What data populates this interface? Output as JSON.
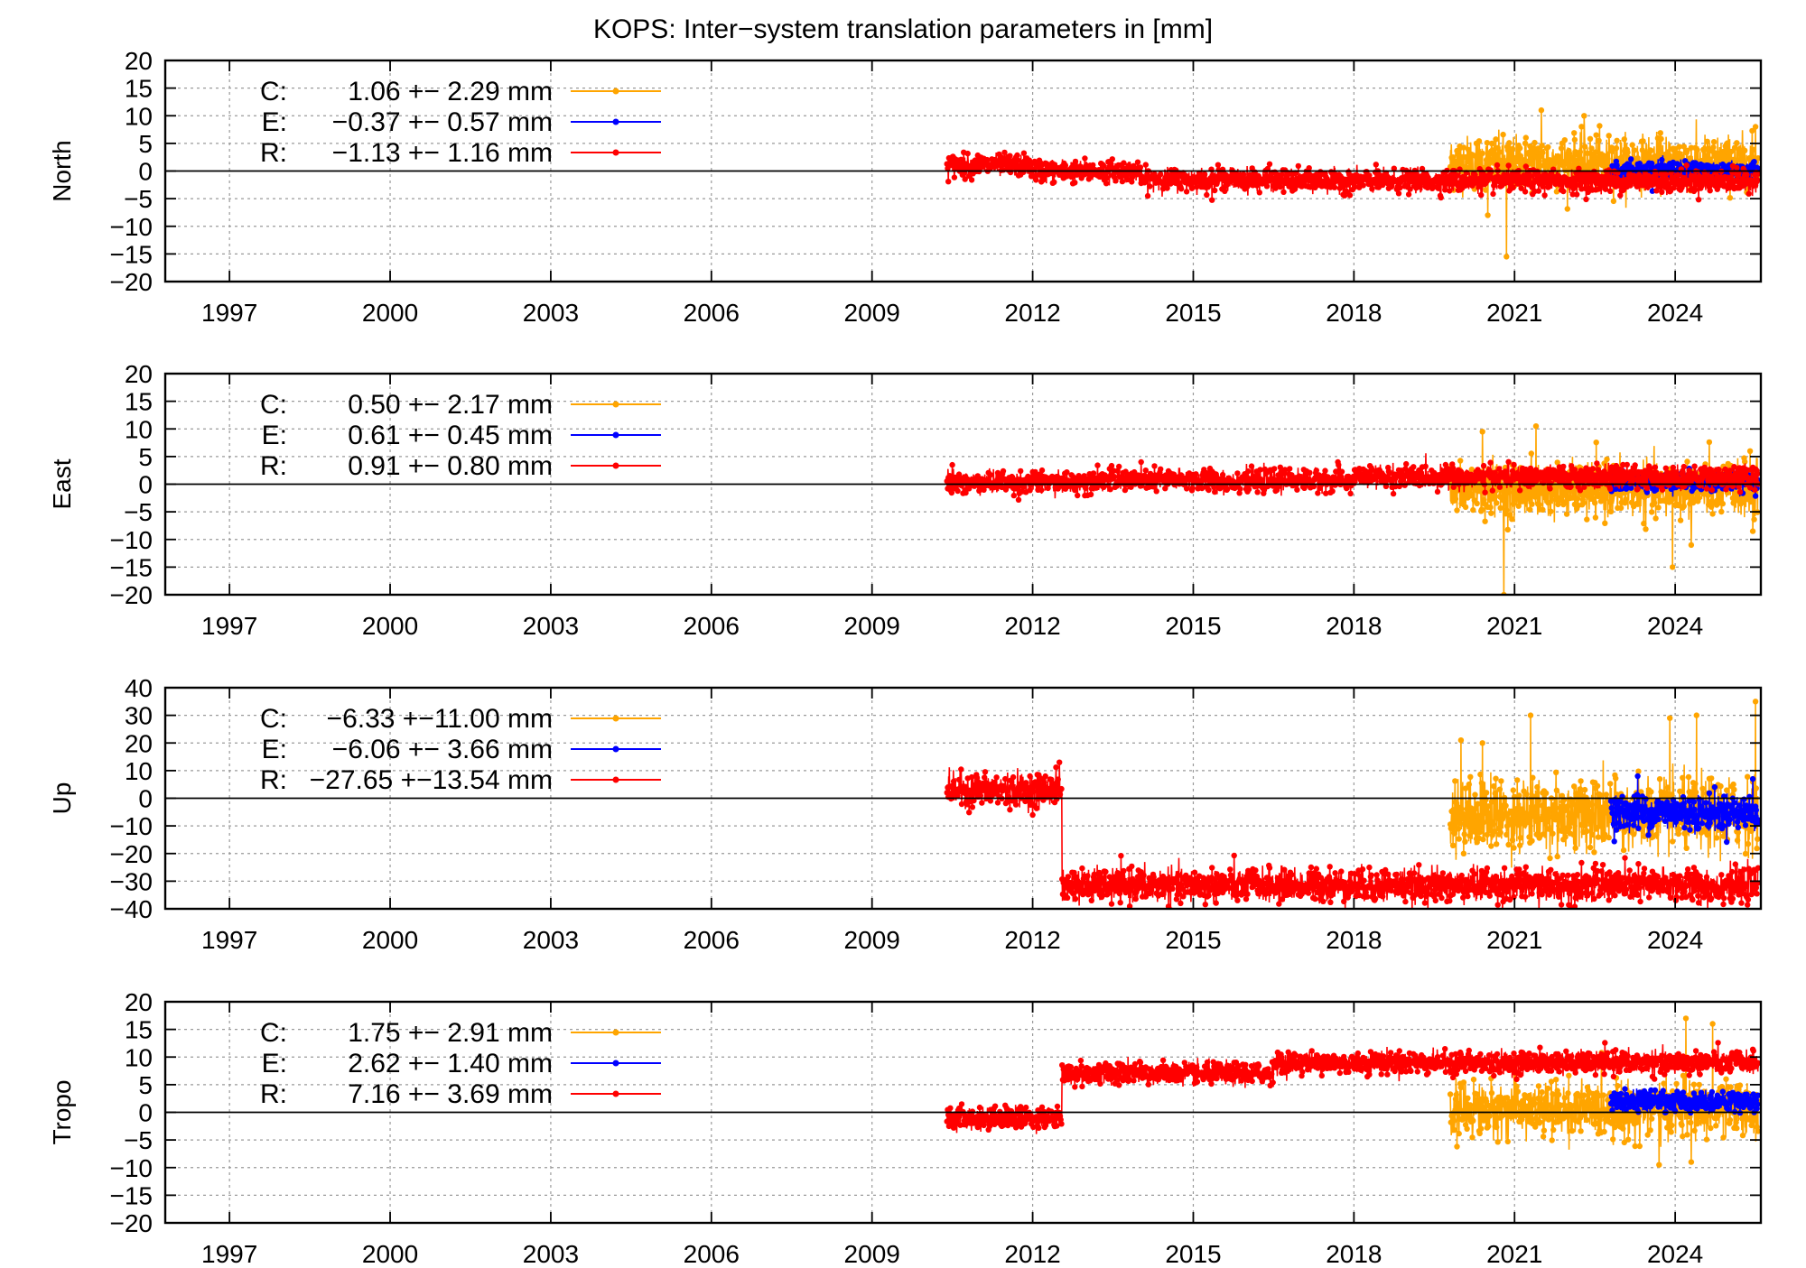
{
  "title": "KOPS: Inter−system translation parameters in [mm]",
  "colors": {
    "C": "#ffa500",
    "E": "#0000ff",
    "R": "#ff0000",
    "grid": "#9a9a9a",
    "axis": "#000000"
  },
  "chart_data": [
    {
      "type": "scatter",
      "panel": "north",
      "ylabel": "North",
      "xlim": [
        1995.8,
        2025.6
      ],
      "ylim": [
        -20,
        20
      ],
      "yticks": [
        20,
        15,
        10,
        5,
        0,
        -5,
        -10,
        -15,
        -20
      ],
      "xticks": [
        1997,
        2000,
        2003,
        2006,
        2009,
        2012,
        2015,
        2018,
        2021,
        2024
      ],
      "grid": true,
      "legend_position": "top-left",
      "series": [
        {
          "name": "C",
          "label": "C:",
          "value": "1.06 +− 2.29 mm",
          "color": "#ffa500",
          "start": 2019.8,
          "end": 2025.55,
          "mean": 1.06,
          "std": 2.29,
          "segments": [
            [
              2019.8,
              2025.55,
              1.5
            ]
          ],
          "spikes": [
            [
              2020.85,
              -15.5
            ],
            [
              2021.5,
              11.0
            ],
            [
              2022.3,
              10.0
            ],
            [
              2020.5,
              -8.0
            ],
            [
              2025.5,
              8.0
            ]
          ]
        },
        {
          "name": "E",
          "label": "E:",
          "value": "−0.37 +− 0.57 mm",
          "color": "#0000ff",
          "start": 2022.8,
          "end": 2025.55,
          "mean": -0.37,
          "std": 0.57,
          "segments": [
            [
              2022.8,
              2025.55,
              0.0
            ]
          ],
          "spikes": []
        },
        {
          "name": "R",
          "label": "R:",
          "value": "−1.13 +− 1.16 mm",
          "color": "#ff0000",
          "start": 2010.4,
          "end": 2025.55,
          "mean": -1.13,
          "std": 1.16,
          "segments": [
            [
              2010.4,
              2012.0,
              1.0
            ],
            [
              2012.0,
              2014.0,
              0.0
            ],
            [
              2014.0,
              2016.5,
              -1.5
            ],
            [
              2016.5,
              2025.55,
              -1.8
            ]
          ],
          "spikes": []
        }
      ]
    },
    {
      "type": "scatter",
      "panel": "east",
      "ylabel": "East",
      "xlim": [
        1995.8,
        2025.6
      ],
      "ylim": [
        -20,
        20
      ],
      "yticks": [
        20,
        15,
        10,
        5,
        0,
        -5,
        -10,
        -15,
        -20
      ],
      "xticks": [
        1997,
        2000,
        2003,
        2006,
        2009,
        2012,
        2015,
        2018,
        2021,
        2024
      ],
      "grid": true,
      "legend_position": "top-left",
      "series": [
        {
          "name": "C",
          "label": "C:",
          "value": "0.50 +− 2.17 mm",
          "color": "#ffa500",
          "start": 2019.8,
          "end": 2025.55,
          "mean": 0.5,
          "std": 2.17,
          "segments": [
            [
              2019.8,
              2025.55,
              -1.0
            ]
          ],
          "spikes": [
            [
              2020.8,
              -20.0
            ],
            [
              2020.4,
              9.5
            ],
            [
              2021.4,
              10.5
            ],
            [
              2023.95,
              -15.0
            ],
            [
              2024.3,
              -11.0
            ],
            [
              2025.45,
              -8.5
            ],
            [
              2025.4,
              6.0
            ]
          ]
        },
        {
          "name": "E",
          "label": "E:",
          "value": "0.61 +− 0.45 mm",
          "color": "#0000ff",
          "start": 2022.8,
          "end": 2025.55,
          "mean": 0.61,
          "std": 0.45,
          "segments": [
            [
              2022.8,
              2025.55,
              0.5
            ]
          ],
          "spikes": []
        },
        {
          "name": "R",
          "label": "R:",
          "value": "0.91 +− 0.80 mm",
          "color": "#ff0000",
          "start": 2010.4,
          "end": 2025.55,
          "mean": 0.91,
          "std": 0.8,
          "segments": [
            [
              2010.4,
              2013.0,
              0.3
            ],
            [
              2013.0,
              2018.0,
              0.7
            ],
            [
              2018.0,
              2025.55,
              1.3
            ]
          ],
          "spikes": [
            [
              2010.5,
              3.5
            ],
            [
              2017.7,
              4.0
            ]
          ]
        }
      ]
    },
    {
      "type": "scatter",
      "panel": "up",
      "ylabel": "Up",
      "xlim": [
        1995.8,
        2025.6
      ],
      "ylim": [
        -40,
        40
      ],
      "yticks": [
        40,
        30,
        20,
        10,
        0,
        -10,
        -20,
        -30,
        -40
      ],
      "xticks": [
        1997,
        2000,
        2003,
        2006,
        2009,
        2012,
        2015,
        2018,
        2021,
        2024
      ],
      "grid": true,
      "legend_position": "top-left",
      "series": [
        {
          "name": "C",
          "label": "C:",
          "value": "−6.33 +−11.00 mm",
          "color": "#ffa500",
          "start": 2019.8,
          "end": 2025.55,
          "mean": -6.33,
          "std": 11.0,
          "segments": [
            [
              2019.8,
              2025.55,
              -6.0
            ]
          ],
          "spikes": [
            [
              2020.0,
              21.0
            ],
            [
              2020.4,
              20.0
            ],
            [
              2021.3,
              30.0
            ],
            [
              2023.9,
              29.0
            ],
            [
              2024.4,
              30.0
            ],
            [
              2025.5,
              35.0
            ]
          ]
        },
        {
          "name": "E",
          "label": "E:",
          "value": "−6.06 +− 3.66 mm",
          "color": "#0000ff",
          "start": 2022.8,
          "end": 2025.55,
          "mean": -6.06,
          "std": 3.66,
          "segments": [
            [
              2022.8,
              2025.55,
              -5.0
            ]
          ],
          "spikes": [
            [
              2023.3,
              8.0
            ],
            [
              2025.45,
              7.0
            ]
          ]
        },
        {
          "name": "R",
          "label": "R:",
          "value": "−27.65 +−13.54 mm",
          "color": "#ff0000",
          "start": 2010.4,
          "end": 2025.55,
          "mean": -27.65,
          "std": 13.54,
          "segments": [
            [
              2010.4,
              2012.45,
              3.0
            ],
            [
              2012.55,
              2025.55,
              -31.5
            ]
          ],
          "spikes": [
            [
              2012.5,
              13.0
            ]
          ]
        }
      ]
    },
    {
      "type": "scatter",
      "panel": "tropo",
      "ylabel": "Tropo",
      "xlim": [
        1995.8,
        2025.6
      ],
      "ylim": [
        -20,
        20
      ],
      "yticks": [
        20,
        15,
        10,
        5,
        0,
        -5,
        -10,
        -15,
        -20
      ],
      "xticks": [
        1997,
        2000,
        2003,
        2006,
        2009,
        2012,
        2015,
        2018,
        2021,
        2024
      ],
      "grid": true,
      "legend_position": "top-left",
      "series": [
        {
          "name": "C",
          "label": "C:",
          "value": "1.75 +− 2.91 mm",
          "color": "#ffa500",
          "start": 2019.8,
          "end": 2025.55,
          "mean": 1.75,
          "std": 2.91,
          "segments": [
            [
              2019.8,
              2025.55,
              0.5
            ]
          ],
          "spikes": [
            [
              2024.2,
              17.0
            ],
            [
              2024.7,
              16.0
            ],
            [
              2023.7,
              -9.5
            ],
            [
              2024.3,
              -9.0
            ]
          ]
        },
        {
          "name": "E",
          "label": "E:",
          "value": "2.62 +− 1.40 mm",
          "color": "#0000ff",
          "start": 2022.8,
          "end": 2025.55,
          "mean": 2.62,
          "std": 1.4,
          "segments": [
            [
              2022.8,
              2025.55,
              2.0
            ]
          ],
          "spikes": []
        },
        {
          "name": "R",
          "label": "R:",
          "value": "7.16 +− 3.69 mm",
          "color": "#ff0000",
          "start": 2010.4,
          "end": 2025.55,
          "mean": 7.16,
          "std": 3.69,
          "segments": [
            [
              2010.4,
              2012.45,
              -1.0
            ],
            [
              2012.55,
              2016.5,
              7.0
            ],
            [
              2016.5,
              2025.55,
              9.0
            ]
          ],
          "spikes": []
        }
      ]
    }
  ]
}
